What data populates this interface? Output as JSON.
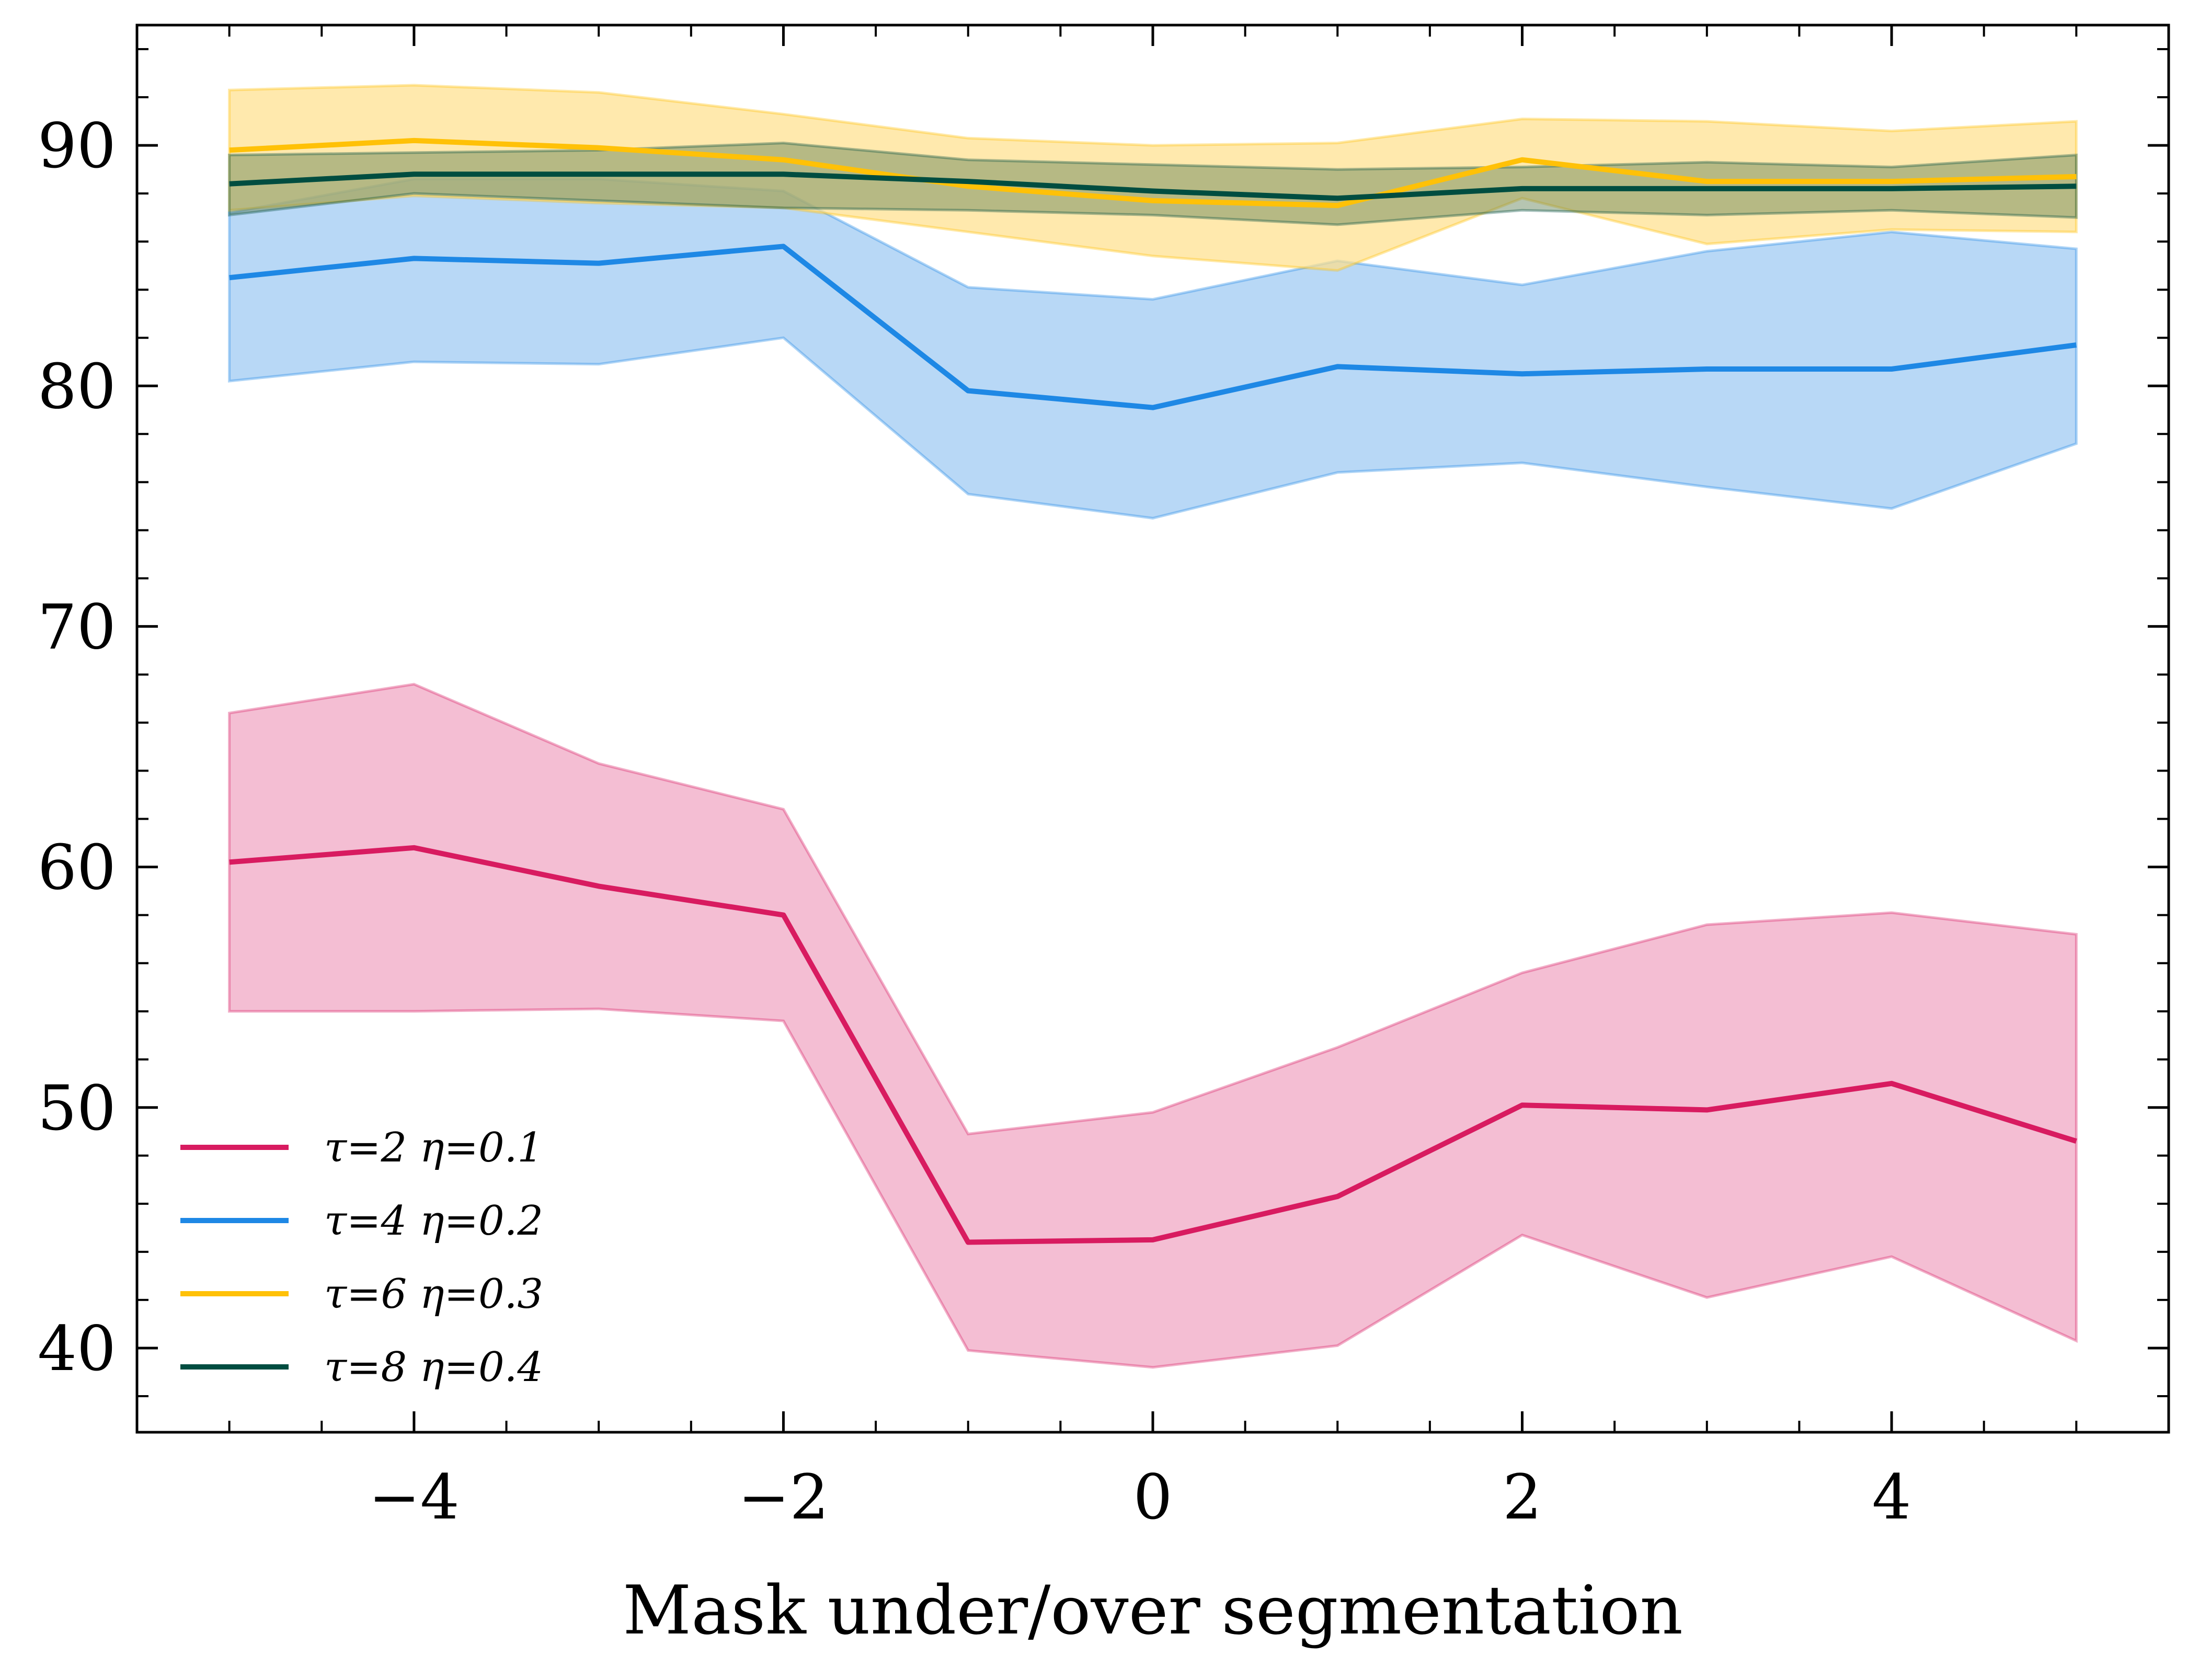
{
  "chart_data": {
    "type": "line",
    "title": "",
    "xlabel": "Mask under/over segmentation",
    "ylabel": "",
    "xlim": [
      -5.5,
      5.5
    ],
    "ylim": [
      36.5,
      95
    ],
    "xticks": [
      -4,
      -2,
      0,
      2,
      4
    ],
    "xtick_labels": [
      "−4",
      "−2",
      "0",
      "2",
      "4"
    ],
    "yticks": [
      40,
      50,
      60,
      70,
      80,
      90
    ],
    "ytick_labels": [
      "40",
      "50",
      "60",
      "70",
      "80",
      "90"
    ],
    "legend_position": "lower-left",
    "grid": false,
    "x": [
      -5,
      -4,
      -3,
      -2,
      -1,
      0,
      1,
      2,
      3,
      4,
      5
    ],
    "series": [
      {
        "name": "τ=2 η=0.1",
        "color": "#d81b60",
        "fill_color": "#f0a3c1",
        "values": [
          60.2,
          60.8,
          59.2,
          58.0,
          44.4,
          44.5,
          46.3,
          50.1,
          49.9,
          51.0,
          48.6
        ],
        "upper": [
          66.4,
          67.6,
          64.3,
          62.4,
          48.9,
          49.8,
          52.5,
          55.6,
          57.6,
          58.1,
          57.2
        ],
        "lower": [
          54.0,
          54.0,
          54.1,
          53.6,
          39.9,
          39.2,
          40.1,
          44.7,
          42.1,
          43.8,
          40.3
        ]
      },
      {
        "name": "τ=4 η=0.2",
        "color": "#1e88e5",
        "fill_color": "#9ac8f2",
        "values": [
          84.5,
          85.3,
          85.1,
          85.8,
          79.8,
          79.1,
          80.8,
          80.5,
          80.7,
          80.7,
          81.7
        ],
        "upper": [
          87.2,
          88.6,
          88.6,
          88.1,
          84.1,
          83.6,
          85.2,
          84.2,
          85.6,
          86.4,
          85.7
        ],
        "lower": [
          80.2,
          81.0,
          80.9,
          82.0,
          75.5,
          74.5,
          76.4,
          76.8,
          75.8,
          74.9,
          77.6
        ]
      },
      {
        "name": "τ=6 η=0.3",
        "color": "#ffc107",
        "fill_color": "#ffe08a",
        "values": [
          89.8,
          90.2,
          89.9,
          89.4,
          88.3,
          87.7,
          87.5,
          89.4,
          88.5,
          88.5,
          88.7
        ],
        "upper": [
          92.3,
          92.5,
          92.2,
          91.3,
          90.3,
          90.0,
          90.1,
          91.1,
          91.0,
          90.6,
          91.0
        ],
        "lower": [
          87.3,
          87.9,
          87.6,
          87.4,
          86.4,
          85.4,
          84.8,
          87.8,
          85.9,
          86.5,
          86.4
        ]
      },
      {
        "name": "τ=8 η=0.4",
        "color": "#004d40",
        "fill_color": "#5d7f52",
        "values": [
          88.4,
          88.8,
          88.8,
          88.8,
          88.5,
          88.1,
          87.8,
          88.2,
          88.2,
          88.2,
          88.3
        ],
        "upper": [
          89.6,
          89.7,
          89.8,
          90.1,
          89.4,
          89.2,
          89.0,
          89.1,
          89.3,
          89.1,
          89.6
        ],
        "lower": [
          87.1,
          88.0,
          87.7,
          87.4,
          87.3,
          87.1,
          86.7,
          87.3,
          87.1,
          87.3,
          87.0
        ]
      }
    ]
  }
}
